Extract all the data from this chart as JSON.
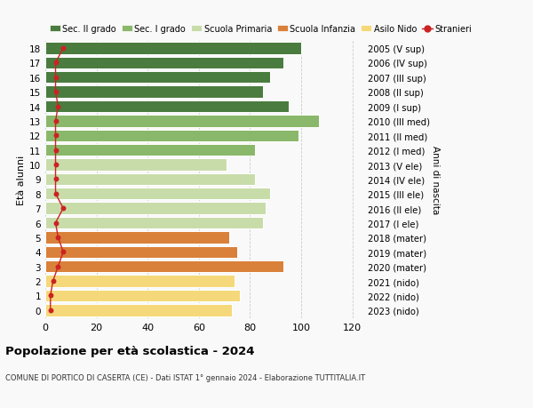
{
  "ages": [
    0,
    1,
    2,
    3,
    4,
    5,
    6,
    7,
    8,
    9,
    10,
    11,
    12,
    13,
    14,
    15,
    16,
    17,
    18
  ],
  "right_labels": [
    "2023 (nido)",
    "2022 (nido)",
    "2021 (nido)",
    "2020 (mater)",
    "2019 (mater)",
    "2018 (mater)",
    "2017 (I ele)",
    "2016 (II ele)",
    "2015 (III ele)",
    "2014 (IV ele)",
    "2013 (V ele)",
    "2012 (I med)",
    "2011 (II med)",
    "2010 (III med)",
    "2009 (I sup)",
    "2008 (II sup)",
    "2007 (III sup)",
    "2006 (IV sup)",
    "2005 (V sup)"
  ],
  "bar_values": [
    73,
    76,
    74,
    93,
    75,
    72,
    85,
    86,
    88,
    82,
    71,
    82,
    99,
    107,
    95,
    85,
    88,
    93,
    100
  ],
  "bar_colors": [
    "#f5d87a",
    "#f5d87a",
    "#f5d87a",
    "#d9803a",
    "#d9803a",
    "#d9803a",
    "#c8dcaa",
    "#c8dcaa",
    "#c8dcaa",
    "#c8dcaa",
    "#c8dcaa",
    "#8ab86a",
    "#8ab86a",
    "#8ab86a",
    "#4a7c3f",
    "#4a7c3f",
    "#4a7c3f",
    "#4a7c3f",
    "#4a7c3f"
  ],
  "stranieri_values": [
    2,
    2,
    3,
    5,
    7,
    5,
    4,
    7,
    4,
    4,
    4,
    4,
    4,
    4,
    5,
    4,
    4,
    4,
    7
  ],
  "title": "Popolazione per età scolastica - 2024",
  "subtitle": "COMUNE DI PORTICO DI CASERTA (CE) - Dati ISTAT 1° gennaio 2024 - Elaborazione TUTTITALIA.IT",
  "ylabel_left": "Età alunni",
  "ylabel_right": "Anni di nascita",
  "xlim": [
    0,
    125
  ],
  "xticks": [
    0,
    20,
    40,
    60,
    80,
    100,
    120
  ],
  "bg_color": "#f9f9f9",
  "grid_color": "#cccccc",
  "legend_items": [
    {
      "label": "Sec. II grado",
      "color": "#4a7c3f"
    },
    {
      "label": "Sec. I grado",
      "color": "#8ab86a"
    },
    {
      "label": "Scuola Primaria",
      "color": "#c8dcaa"
    },
    {
      "label": "Scuola Infanzia",
      "color": "#d9803a"
    },
    {
      "label": "Asilo Nido",
      "color": "#f5d87a"
    },
    {
      "label": "Stranieri",
      "color": "#cc2222"
    }
  ]
}
